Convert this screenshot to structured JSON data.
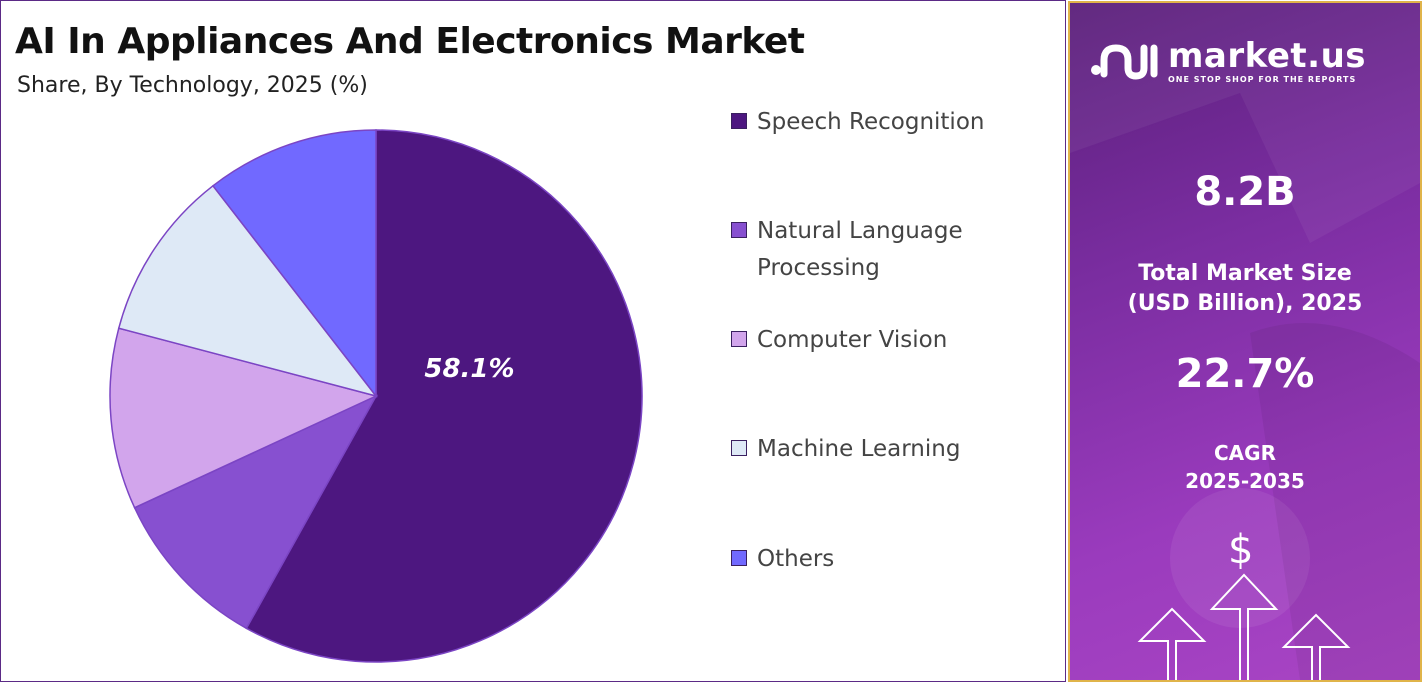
{
  "chart_data": {
    "type": "pie",
    "title": "AI In Appliances And Electronics Market",
    "subtitle": "Share, By Technology, 2025 (%)",
    "categories": [
      "Speech Recognition",
      "Natural Language Processing",
      "Computer Vision",
      "Machine Learning",
      "Others"
    ],
    "values": [
      58.1,
      10.0,
      11.0,
      10.4,
      10.5
    ],
    "colors": [
      "#4d1780",
      "#8750d0",
      "#d2a5ec",
      "#dee9f6",
      "#7169ff"
    ],
    "data_labels": [
      "58.1%",
      "",
      "",
      "",
      ""
    ],
    "legend_position": "right"
  },
  "legend": {
    "items": [
      {
        "label": "Speech Recognition",
        "color": "#4d1780"
      },
      {
        "label": "Natural Language Processing",
        "color": "#8750d0"
      },
      {
        "label": "Computer Vision",
        "color": "#d2a5ec"
      },
      {
        "label": "Machine Learning",
        "color": "#dee9f6"
      },
      {
        "label": "Others",
        "color": "#7169ff"
      }
    ]
  },
  "sidebar": {
    "brand_name": "market.us",
    "brand_tagline": "ONE STOP SHOP FOR THE REPORTS",
    "market_size_value": "8.2B",
    "market_size_label_line1": "Total Market Size",
    "market_size_label_line2": "(USD Billion), 2025",
    "cagr_value": "22.7%",
    "cagr_label_line1": "CAGR",
    "cagr_label_line2": "2025-2035",
    "dollar_symbol": "$",
    "logo_icon": "market-us-logo-icon",
    "arrow_icon": "growth-arrows-icon"
  },
  "colors": {
    "accent_border": "#e0b44a",
    "panel_purple": "#7a2da0"
  }
}
